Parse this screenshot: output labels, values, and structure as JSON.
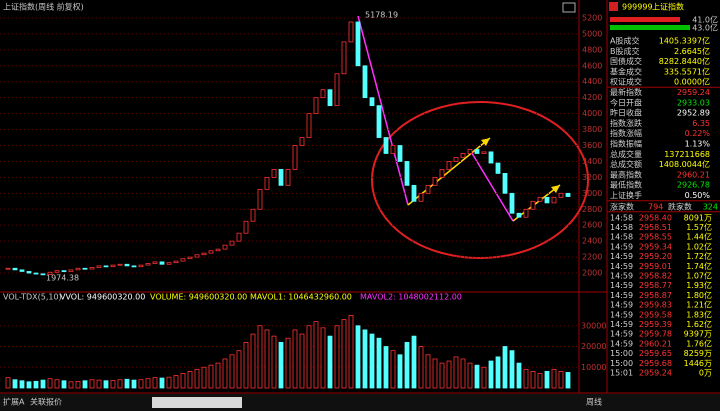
{
  "chart_data": {
    "type": "candlestick",
    "title": "上证指数(周线 前复权)",
    "closes": [
      2060,
      2040,
      2020,
      2000,
      1990,
      1980,
      2010,
      2030,
      2020,
      2040,
      2060,
      2050,
      2070,
      2090,
      2080,
      2100,
      2110,
      2090,
      2080,
      2100,
      2120,
      2140,
      2110,
      2130,
      2150,
      2180,
      2200,
      2230,
      2250,
      2280,
      2300,
      2350,
      2400,
      2500,
      2650,
      2800,
      3050,
      3200,
      3300,
      3100,
      3300,
      3600,
      3700,
      4000,
      4200,
      4300,
      4100,
      4500,
      4900,
      5150,
      4600,
      4200,
      4100,
      3700,
      3500,
      3600,
      3400,
      3100,
      2900,
      3000,
      3100,
      3200,
      3300,
      3400,
      3450,
      3500,
      3550,
      3500,
      3520,
      3380,
      3250,
      3000,
      2750,
      2700,
      2800,
      2900,
      2950,
      2880,
      2950,
      3000,
      2960
    ],
    "ylim": [
      1850,
      5300
    ],
    "yticks": [
      2000,
      2200,
      2400,
      2600,
      2800,
      3000,
      3200,
      3400,
      3600,
      3800,
      4000,
      4200,
      4400,
      4600,
      4800,
      5000,
      5200
    ],
    "up_color": "#ff3232",
    "down_color": "#54ffff",
    "grid": true,
    "high_label": "5178.19",
    "low_label": "1974.38",
    "volume": {
      "title": "VOL-TDX(5,10)",
      "readout": [
        "VVOL: 949600320.00",
        "VOLUME: 949600320.00",
        "MAVOL1: 1046432960.00",
        "MAVOL2: 1048002112.00"
      ],
      "values": [
        5000,
        4000,
        3500,
        3000,
        3200,
        3800,
        4500,
        4000,
        3500,
        3000,
        3200,
        3500,
        4000,
        3800,
        3500,
        3600,
        4000,
        4200,
        3800,
        4000,
        4500,
        5000,
        4800,
        5200,
        6000,
        7000,
        8000,
        9000,
        10000,
        11000,
        12000,
        14000,
        16000,
        18000,
        22000,
        26000,
        30000,
        28000,
        25000,
        22000,
        24000,
        28000,
        26000,
        30000,
        32000,
        29000,
        25000,
        30000,
        33000,
        35000,
        30000,
        28000,
        26000,
        24000,
        20000,
        18000,
        16000,
        22000,
        25000,
        20000,
        16000,
        14000,
        12000,
        13000,
        15000,
        14000,
        12000,
        11000,
        10000,
        13000,
        15000,
        20000,
        18000,
        12000,
        9000,
        8000,
        7000,
        8000,
        9000,
        8000,
        7500
      ],
      "ylim": [
        0,
        40000
      ],
      "yticks": [
        10000,
        20000,
        30000
      ]
    }
  },
  "quote_panel": {
    "code": "999999",
    "name": "上证指数",
    "bars": [
      "41.0亿",
      "43.0亿"
    ],
    "rows": [
      {
        "label": "A股成交",
        "value": "1405.3397亿",
        "color": "#ffff00"
      },
      {
        "label": "B股成交",
        "value": "2.6645亿",
        "color": "#ffff00"
      },
      {
        "label": "国债成交",
        "value": "8282.8440亿",
        "color": "#ffff00"
      },
      {
        "label": "基金成交",
        "value": "335.5571亿",
        "color": "#ffff00"
      },
      {
        "label": "权证成交",
        "value": "0.0000亿",
        "color": "#ffff00"
      },
      {
        "label": "最新指数",
        "value": "2959.24",
        "color": "#ff3232"
      },
      {
        "label": "今日开盘",
        "value": "2933.03",
        "color": "#00e600"
      },
      {
        "label": "昨日收盘",
        "value": "2952.89",
        "color": "#ffffff"
      },
      {
        "label": "指数涨跌",
        "value": "6.35",
        "color": "#ff3232"
      },
      {
        "label": "指数涨幅",
        "value": "0.22%",
        "color": "#ff3232"
      },
      {
        "label": "指数振幅",
        "value": "1.13%",
        "color": "#ffffff"
      },
      {
        "label": "总成交量",
        "value": "137211668",
        "color": "#ffff00"
      },
      {
        "label": "总成交额",
        "value": "1408.0044亿",
        "color": "#ffff00"
      },
      {
        "label": "最高指数",
        "value": "2960.21",
        "color": "#ff3232"
      },
      {
        "label": "最低指数",
        "value": "2926.78",
        "color": "#00e600"
      },
      {
        "label": "上证换手",
        "value": "0.50%",
        "color": "#ffffff"
      }
    ],
    "breadth": [
      "涨家数",
      "794",
      "跌家数",
      "324"
    ],
    "ticks": [
      [
        "14:58",
        "2958.40",
        "8091万"
      ],
      [
        "14:58",
        "2958.51",
        "1.57亿"
      ],
      [
        "14:58",
        "2958.55",
        "1.44亿"
      ],
      [
        "14:59",
        "2959.34",
        "1.02亿"
      ],
      [
        "14:59",
        "2959.20",
        "1.72亿"
      ],
      [
        "14:59",
        "2959.01",
        "1.74亿"
      ],
      [
        "14:59",
        "2958.82",
        "1.07亿"
      ],
      [
        "14:59",
        "2958.77",
        "1.93亿"
      ],
      [
        "14:59",
        "2958.87",
        "1.80亿"
      ],
      [
        "14:59",
        "2959.83",
        "1.21亿"
      ],
      [
        "14:59",
        "2959.58",
        "1.83亿"
      ],
      [
        "14:59",
        "2959.39",
        "1.62亿"
      ],
      [
        "14:59",
        "2959.78",
        "9397万"
      ],
      [
        "14:59",
        "2960.21",
        "1.76亿"
      ],
      [
        "15:00",
        "2959.65",
        "8259万"
      ],
      [
        "15:00",
        "2959.68",
        "1446万"
      ],
      [
        "15:01",
        "2959.24",
        "0万"
      ]
    ]
  },
  "bottom_bar": {
    "tabs": [
      "扩展A",
      "关联报价"
    ],
    "period": "周线"
  }
}
